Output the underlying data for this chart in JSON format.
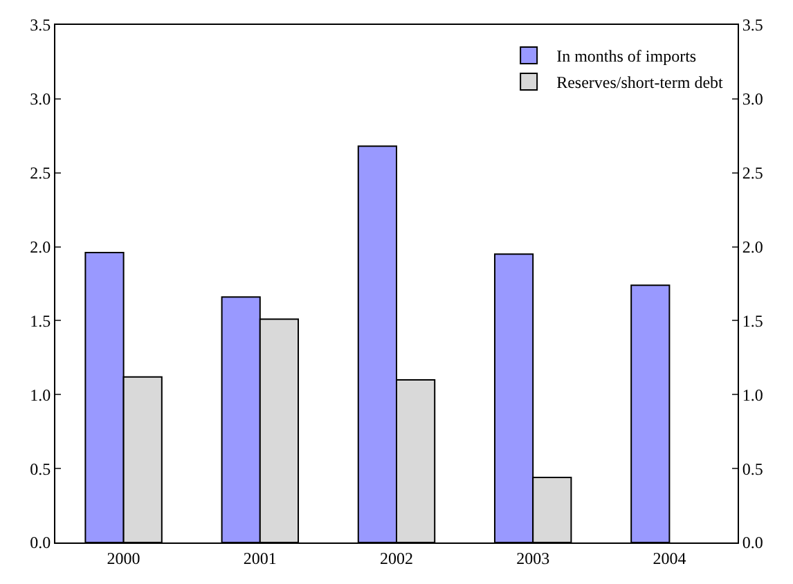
{
  "chart_data": {
    "type": "bar",
    "categories": [
      "2000",
      "2001",
      "2002",
      "2003",
      "2004"
    ],
    "series": [
      {
        "name": "In months of imports",
        "color": "#9999ff",
        "values": [
          1.96,
          1.66,
          2.68,
          1.95,
          1.74
        ]
      },
      {
        "name": "Reserves/short-term debt",
        "color": "#d9d9d9",
        "values": [
          1.12,
          1.51,
          1.1,
          0.44,
          null
        ]
      }
    ],
    "ylim": [
      0,
      3.5
    ],
    "yticks": [
      {
        "value": 0,
        "label": "0.0"
      },
      {
        "value": 0.5,
        "label": "0.5"
      },
      {
        "value": 1,
        "label": "1.0"
      },
      {
        "value": 1.5,
        "label": "1.5"
      },
      {
        "value": 2,
        "label": "2.0"
      },
      {
        "value": 2.5,
        "label": "2.5"
      },
      {
        "value": 3,
        "label": "3.0"
      },
      {
        "value": 3.5,
        "label": "3.5"
      }
    ],
    "y2lim": [
      0,
      3.5
    ],
    "y2ticks": [
      {
        "value": 0,
        "label": "0.0"
      },
      {
        "value": 0.5,
        "label": "0.5"
      },
      {
        "value": 1,
        "label": "1.0"
      },
      {
        "value": 1.5,
        "label": "1.5"
      },
      {
        "value": 2,
        "label": "2.0"
      },
      {
        "value": 2.5,
        "label": "2.5"
      },
      {
        "value": 3,
        "label": "3.0"
      },
      {
        "value": 3.5,
        "label": "3.5"
      }
    ],
    "legend": "top right"
  }
}
